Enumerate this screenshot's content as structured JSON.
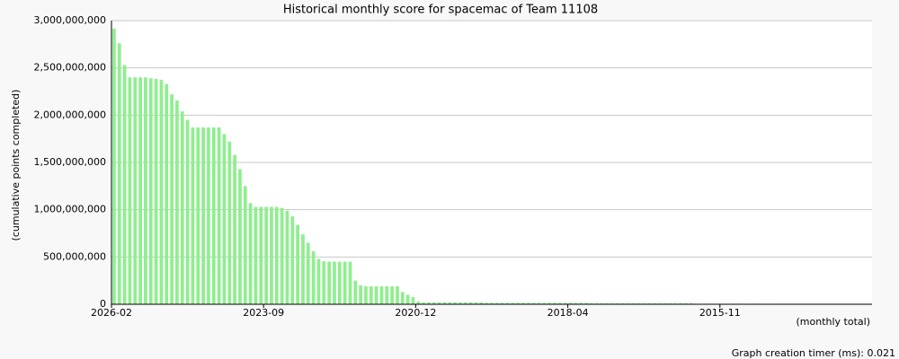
{
  "chart_data": {
    "type": "bar",
    "title": "Historical monthly score for spacemac of Team 11108",
    "y_label": "(cumulative points completed)",
    "x_label": "(monthly total)",
    "color": "#90ee90",
    "grid": true,
    "ylim": [
      0,
      3000000000
    ],
    "yticks": [
      0,
      {
        "value": 500000000,
        "label": "500,000,000"
      },
      {
        "value": 1000000000,
        "label": "1,000,000,000"
      },
      {
        "value": 1500000000,
        "label": "1,500,000,000"
      },
      {
        "value": 2000000000,
        "label": "2,000,000,000"
      },
      {
        "value": 2500000000,
        "label": "2,500,000,000"
      },
      {
        "value": 3000000000,
        "label": "3,000,000,000"
      }
    ],
    "categories": [
      "2026-02",
      null,
      null,
      null,
      null,
      null,
      null,
      null,
      null,
      null,
      null,
      null,
      null,
      null,
      null,
      null,
      null,
      null,
      null,
      null,
      null,
      null,
      null,
      null,
      null,
      null,
      null,
      null,
      null,
      "2023-09",
      null,
      null,
      null,
      null,
      null,
      null,
      null,
      null,
      null,
      null,
      null,
      null,
      null,
      null,
      null,
      null,
      null,
      null,
      null,
      null,
      null,
      null,
      null,
      null,
      null,
      null,
      null,
      null,
      "2020-12",
      null,
      null,
      null,
      null,
      null,
      null,
      null,
      null,
      null,
      null,
      null,
      null,
      null,
      null,
      null,
      null,
      null,
      null,
      null,
      null,
      null,
      null,
      null,
      null,
      null,
      null,
      null,
      null,
      "2018-04",
      null,
      null,
      null,
      null,
      null,
      null,
      null,
      null,
      null,
      null,
      null,
      null,
      null,
      null,
      null,
      null,
      null,
      null,
      null,
      null,
      null,
      null,
      null,
      null,
      null,
      null,
      null,
      null,
      "2015-11",
      null,
      null,
      null,
      null,
      null,
      null,
      null,
      null,
      null,
      null,
      null,
      null,
      null,
      null,
      null,
      null,
      null,
      null,
      null,
      null,
      null,
      null,
      null,
      null,
      null,
      null,
      null,
      null
    ],
    "values": [
      2915000000,
      2760000000,
      2530000000,
      2400000000,
      2400000000,
      2400000000,
      2400000000,
      2390000000,
      2385000000,
      2375000000,
      2330000000,
      2220000000,
      2155000000,
      2040000000,
      1950000000,
      1870000000,
      1870000000,
      1870000000,
      1870000000,
      1870000000,
      1870000000,
      1800000000,
      1720000000,
      1580000000,
      1430000000,
      1250000000,
      1070000000,
      1030000000,
      1030000000,
      1030000000,
      1030000000,
      1030000000,
      1020000000,
      990000000,
      930000000,
      840000000,
      740000000,
      650000000,
      560000000,
      480000000,
      455000000,
      450000000,
      450000000,
      450000000,
      450000000,
      450000000,
      250000000,
      200000000,
      190000000,
      190000000,
      190000000,
      190000000,
      190000000,
      190000000,
      190000000,
      130000000,
      100000000,
      75000000,
      30000000,
      20000000,
      20000000,
      20000000,
      20000000,
      20000000,
      20000000,
      20000000,
      20000000,
      20000000,
      20000000,
      20000000,
      20000000,
      15000000,
      15000000,
      15000000,
      15000000,
      15000000,
      15000000,
      15000000,
      15000000,
      15000000,
      15000000,
      15000000,
      15000000,
      15000000,
      15000000,
      15000000,
      15000000,
      15000000,
      15000000,
      15000000,
      15000000,
      10000000,
      10000000,
      10000000,
      10000000,
      10000000,
      10000000,
      10000000,
      10000000,
      10000000,
      10000000,
      10000000,
      10000000,
      10000000,
      10000000,
      10000000,
      10000000,
      10000000,
      10000000,
      10000000,
      10000000,
      5000000,
      5000000,
      5000000,
      5000000,
      5000000,
      5000000,
      5000000,
      5000000,
      5000000,
      5000000,
      5000000,
      5000000,
      5000000,
      5000000,
      5000000,
      0,
      0,
      0,
      0,
      0,
      0,
      0,
      0,
      0,
      0,
      0,
      0,
      0,
      0,
      0,
      0,
      0,
      0,
      0
    ]
  },
  "footer": "Graph creation timer (ms): 0.021"
}
